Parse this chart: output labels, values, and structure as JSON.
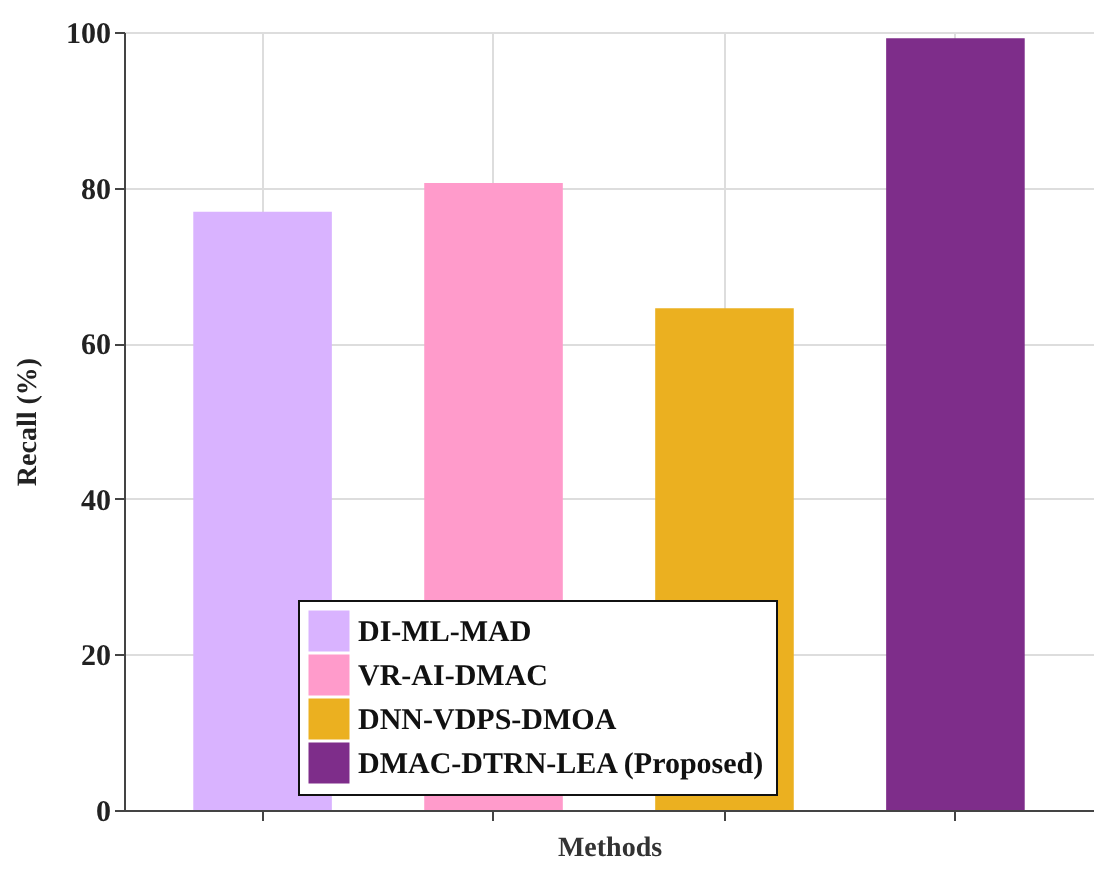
{
  "chart_data": {
    "type": "bar",
    "xlabel": "Methods",
    "ylabel": "Recall (%)",
    "categories": [
      null,
      null,
      null,
      null
    ],
    "series": [
      {
        "name": "DI-ML-MAD",
        "color": "#d9b3ff",
        "values": [
          76.9,
          null,
          null,
          null
        ]
      },
      {
        "name": "VR-AI-DMAC",
        "color": "#ff9bcb",
        "values": [
          null,
          80.6,
          null,
          null
        ]
      },
      {
        "name": "DNN-VDPS-DMOA",
        "color": "#ebb020",
        "values": [
          null,
          null,
          64.5,
          null
        ]
      },
      {
        "name": "DMAC-DTRN-LEA (Proposed)",
        "color": "#7e2d8a",
        "values": [
          null,
          null,
          null,
          99.2
        ]
      }
    ],
    "ylim": [
      0,
      100
    ],
    "yticks": [
      0,
      20,
      40,
      60,
      80,
      100
    ],
    "grid": true,
    "legend": "bottom",
    "tick_labels": "y"
  }
}
